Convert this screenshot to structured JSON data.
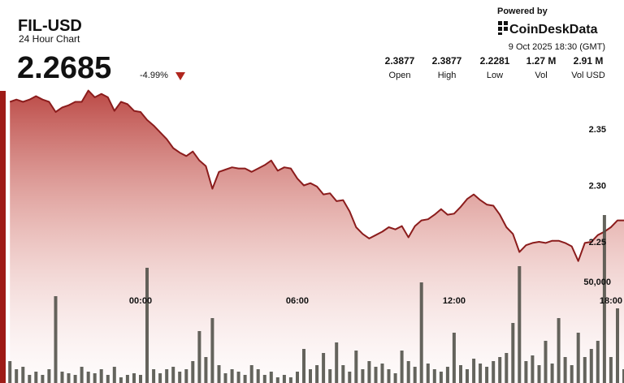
{
  "header": {
    "symbol": "FIL-USD",
    "subtitle": "24 Hour Chart",
    "price": "2.2685",
    "change": "-4.99%",
    "powered_by": "Powered by",
    "brand": "CoinDeskData",
    "timestamp": "9 Oct 2025 18:30 (GMT)"
  },
  "stats": [
    {
      "value": "2.3877",
      "label": "Open"
    },
    {
      "value": "2.3877",
      "label": "High"
    },
    {
      "value": "2.2281",
      "label": "Low"
    },
    {
      "value": "1.27 M",
      "label": "Vol"
    },
    {
      "value": "2.91 M",
      "label": "Vol USD"
    }
  ],
  "chart_data": {
    "type": "line",
    "x": [
      -5,
      -4.75,
      -4.5,
      -4.25,
      -4,
      -3.75,
      -3.5,
      -3.25,
      -3,
      -2.75,
      -2.5,
      -2.25,
      -2,
      -1.75,
      -1.5,
      -1.25,
      -1,
      -0.75,
      -0.5,
      -0.25,
      0,
      0.25,
      0.5,
      0.75,
      1,
      1.25,
      1.5,
      1.75,
      2,
      2.25,
      2.5,
      2.75,
      3,
      3.25,
      3.5,
      3.75,
      4,
      4.25,
      4.5,
      4.75,
      5,
      5.25,
      5.5,
      5.75,
      6,
      6.25,
      6.5,
      6.75,
      7,
      7.25,
      7.5,
      7.75,
      8,
      8.25,
      8.5,
      8.75,
      9,
      9.25,
      9.5,
      9.75,
      10,
      10.25,
      10.5,
      10.75,
      11,
      11.25,
      11.5,
      11.75,
      12,
      12.25,
      12.5,
      12.75,
      13,
      13.25,
      13.5,
      13.75,
      14,
      14.25,
      14.5,
      14.75,
      15,
      15.25,
      15.5,
      15.75,
      16,
      16.25,
      16.5,
      16.75,
      17,
      17.25,
      17.5,
      17.75,
      18,
      18.25,
      18.5
    ],
    "xlim": [
      -5.13,
      18.5
    ],
    "xticks": [
      {
        "value": 0,
        "label": "00:00"
      },
      {
        "value": 6,
        "label": "06:00"
      },
      {
        "value": 12,
        "label": "12:00"
      },
      {
        "value": 18,
        "label": "18:00"
      }
    ],
    "ylim": [
      2.125,
      2.388
    ],
    "yticks": [
      2.25,
      {
        "value": 2.3,
        "label": "2.30"
      },
      2.35
    ],
    "y2lim": [
      0,
      146400
    ],
    "y2ticks": [
      {
        "value": 50000,
        "label": "50,000"
      }
    ],
    "series": [
      {
        "color": "#8b1c1c",
        "values": [
          2.374,
          2.376,
          2.374,
          2.376,
          2.379,
          2.376,
          2.374,
          2.365,
          2.369,
          2.371,
          2.374,
          2.374,
          2.384,
          2.378,
          2.381,
          2.378,
          2.366,
          2.374,
          2.372,
          2.366,
          2.365,
          2.358,
          2.353,
          2.347,
          2.341,
          2.333,
          2.329,
          2.326,
          2.33,
          2.322,
          2.317,
          2.297,
          2.312,
          2.314,
          2.316,
          2.315,
          2.315,
          2.312,
          2.315,
          2.318,
          2.322,
          2.313,
          2.316,
          2.315,
          2.306,
          2.3,
          2.302,
          2.299,
          2.292,
          2.293,
          2.286,
          2.287,
          2.277,
          2.263,
          2.257,
          2.253,
          2.256,
          2.259,
          2.263,
          2.261,
          2.264,
          2.254,
          2.264,
          2.269,
          2.27,
          2.274,
          2.279,
          2.274,
          2.275,
          2.281,
          2.288,
          2.292,
          2.287,
          2.283,
          2.282,
          2.274,
          2.263,
          2.257,
          2.241,
          2.247,
          2.249,
          2.25,
          2.249,
          2.251,
          2.251,
          2.249,
          2.246,
          2.233,
          2.249,
          2.25,
          2.256,
          2.259,
          2.263,
          2.269,
          2.269
        ]
      },
      {
        "type": "bar",
        "axis": "y2",
        "color": "#4f4f47",
        "values": [
          10800,
          6800,
          8000,
          4000,
          5600,
          4000,
          6800,
          42800,
          5600,
          4800,
          4000,
          8000,
          5600,
          4800,
          6800,
          4000,
          8000,
          2800,
          4000,
          4800,
          4000,
          56800,
          6800,
          4800,
          6800,
          8000,
          5600,
          6800,
          10800,
          25600,
          12800,
          32000,
          8800,
          4800,
          6800,
          5600,
          4000,
          8800,
          6800,
          4000,
          5600,
          2800,
          4000,
          2800,
          5600,
          16800,
          6800,
          8800,
          14800,
          6800,
          20000,
          8800,
          5600,
          16000,
          6800,
          10800,
          8000,
          9600,
          6800,
          4800,
          16000,
          10800,
          8000,
          49600,
          9600,
          6800,
          5600,
          8000,
          24800,
          8800,
          6800,
          12000,
          9600,
          8000,
          10800,
          12800,
          14800,
          29600,
          57600,
          10800,
          13600,
          8800,
          20800,
          9600,
          32000,
          12800,
          8800,
          24800,
          12800,
          16800,
          20800,
          82800,
          12800,
          36800,
          6800
        ]
      }
    ]
  }
}
